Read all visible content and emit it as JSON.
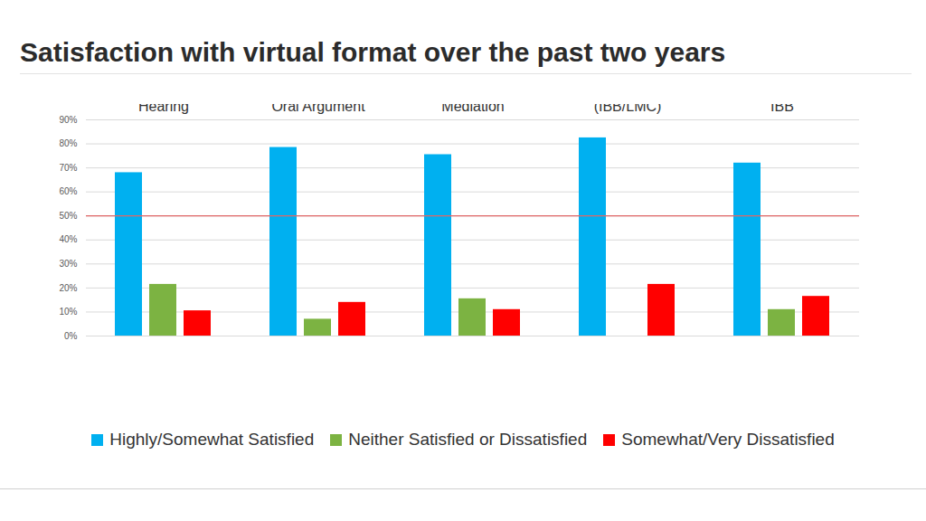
{
  "chart_data": {
    "type": "bar",
    "title": "Satisfaction with virtual format over the past two years",
    "categories": [
      "Contested Case Hearing",
      "Oral Argument",
      "Mediation",
      "Training (IBB/LMC)",
      "ERB Facilitated IBB"
    ],
    "series": [
      {
        "name": "Highly/Somewhat Satisfied",
        "color": "#00b0f0",
        "values": [
          68,
          78.5,
          75.5,
          82.5,
          72
        ]
      },
      {
        "name": "Neither Satisfied or Dissatisfied",
        "color": "#7cb342",
        "values": [
          21.5,
          7,
          15.5,
          null,
          11
        ]
      },
      {
        "name": "Somewhat/Very Dissatisfied",
        "color": "#ff0000",
        "values": [
          10.5,
          14,
          11,
          21.5,
          16.5
        ]
      }
    ],
    "ylim": [
      0,
      90
    ],
    "yticks": [
      {
        "value": 0,
        "label": "0%"
      },
      {
        "value": 10,
        "label": "10%"
      },
      {
        "value": 20,
        "label": "20%"
      },
      {
        "value": 30,
        "label": "30%"
      },
      {
        "value": 40,
        "label": "40%"
      },
      {
        "value": 50,
        "label": "50%"
      },
      {
        "value": 60,
        "label": "60%"
      },
      {
        "value": 70,
        "label": "70%"
      },
      {
        "value": 80,
        "label": "80%"
      },
      {
        "value": 90,
        "label": "90%"
      }
    ],
    "grid": true,
    "reference_line": 50,
    "legend": "bottom"
  }
}
